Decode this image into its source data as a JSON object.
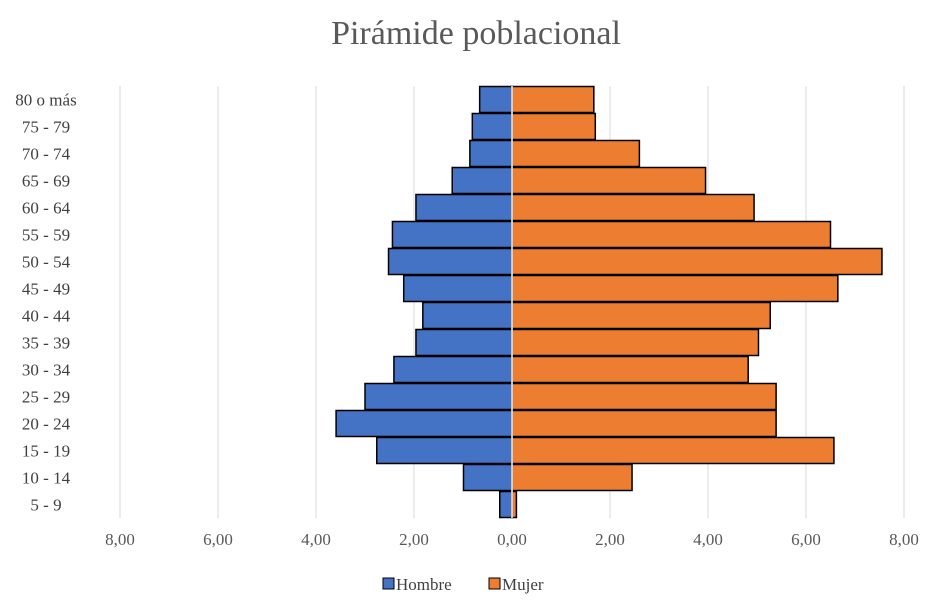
{
  "chart_data": {
    "type": "bar",
    "orientation": "horizontal",
    "title": "Pirámide poblacional",
    "categories": [
      "80 o más",
      "75 - 79",
      "70 - 74",
      "65 - 69",
      "60 - 64",
      "55 - 59",
      "50 - 54",
      "45 - 49",
      "40 - 44",
      "35 - 39",
      "30 - 34",
      "25 - 29",
      "20 - 24",
      "15 - 19",
      "10 - 14",
      "5 - 9"
    ],
    "series": [
      {
        "name": "Hombre",
        "color": "#4472c4",
        "values": [
          -0.66,
          -0.81,
          -0.86,
          -1.22,
          -1.96,
          -2.44,
          -2.52,
          -2.21,
          -1.82,
          -1.96,
          -2.41,
          -3.0,
          -3.59,
          -2.76,
          -0.99,
          -0.25
        ]
      },
      {
        "name": "Mujer",
        "color": "#ed7d31",
        "values": [
          1.67,
          1.7,
          2.6,
          3.95,
          4.94,
          6.5,
          7.55,
          6.65,
          5.27,
          5.03,
          4.82,
          5.39,
          5.39,
          6.57,
          2.45,
          0.09
        ]
      }
    ],
    "xlim": [
      -8,
      8
    ],
    "xticks": [
      "8,00",
      "6,00",
      "4,00",
      "2,00",
      "0,00",
      "2,00",
      "4,00",
      "6,00",
      "8,00"
    ],
    "grid": true,
    "legend_position": "bottom"
  }
}
